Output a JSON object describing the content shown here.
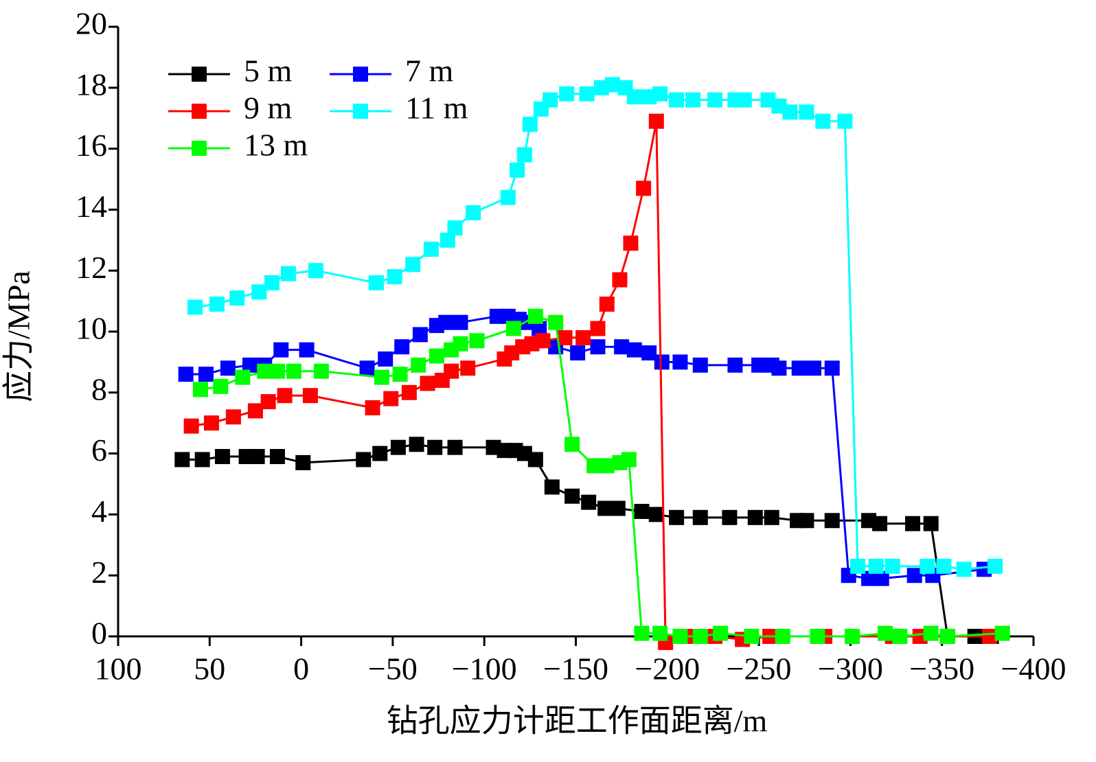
{
  "chart_data": {
    "type": "line",
    "xlabel": "钻孔应力计距工作面距离/m",
    "ylabel": "应力/MPa",
    "xlim": [
      100,
      -400
    ],
    "ylim": [
      0,
      20
    ],
    "xticks": [
      100,
      50,
      0,
      {
        "value": -50,
        "label": "−50"
      },
      {
        "value": -100,
        "label": "−100"
      },
      {
        "value": -150,
        "label": "−150"
      },
      {
        "value": -200,
        "label": "−200"
      },
      {
        "value": -250,
        "label": "−250"
      },
      {
        "value": -300,
        "label": "−300"
      },
      {
        "value": -350,
        "label": "−350"
      },
      {
        "value": -400,
        "label": "−400"
      }
    ],
    "yticks": [
      0,
      2,
      4,
      6,
      8,
      10,
      12,
      14,
      16,
      18,
      20
    ],
    "series": [
      {
        "name": "5 m",
        "color": "#000000",
        "x": [
          65,
          54,
          43,
          30,
          24,
          13,
          -1,
          -34,
          -43,
          -53,
          -63,
          -73,
          -84,
          -105,
          -111,
          -117,
          -122,
          -128,
          -137,
          -148,
          -157,
          -166,
          -173,
          -186,
          -194,
          -205,
          -218,
          -234,
          -248,
          -257,
          -271,
          -276,
          -290,
          -310,
          -316,
          -334,
          -344,
          -353,
          -368,
          -377
        ],
        "values": [
          5.8,
          5.8,
          5.9,
          5.9,
          5.9,
          5.9,
          5.7,
          5.8,
          6.0,
          6.2,
          6.3,
          6.2,
          6.2,
          6.2,
          6.1,
          6.1,
          6.0,
          5.8,
          4.9,
          4.6,
          4.4,
          4.2,
          4.2,
          4.1,
          4.0,
          3.9,
          3.9,
          3.9,
          3.9,
          3.9,
          3.8,
          3.8,
          3.8,
          3.8,
          3.7,
          3.7,
          3.7,
          0.0,
          0.0,
          0.0
        ]
      },
      {
        "name": "7 m",
        "color": "#0000ff",
        "x": [
          63,
          52,
          40,
          28,
          20,
          11,
          -3,
          -36,
          -46,
          -55,
          -65,
          -74,
          -79,
          -87,
          -107,
          -113,
          -119,
          -124,
          -130,
          -139,
          -151,
          -162,
          -175,
          -182,
          -190,
          -197,
          -207,
          -218,
          -237,
          -250,
          -257,
          -261,
          -272,
          -280,
          -290,
          -299,
          -310,
          -317,
          -335,
          -345,
          -373
        ],
        "values": [
          8.6,
          8.6,
          8.8,
          8.9,
          8.9,
          9.4,
          9.4,
          8.8,
          9.1,
          9.5,
          9.9,
          10.2,
          10.3,
          10.3,
          10.5,
          10.5,
          10.4,
          10.3,
          10.1,
          9.5,
          9.3,
          9.5,
          9.5,
          9.4,
          9.3,
          9.0,
          9.0,
          8.9,
          8.9,
          8.9,
          8.9,
          8.8,
          8.8,
          8.8,
          8.8,
          2.0,
          1.9,
          1.9,
          2.0,
          2.0,
          2.2
        ]
      },
      {
        "name": "9 m",
        "color": "#ff0000",
        "x": [
          60,
          49,
          37,
          25,
          18,
          9,
          -5,
          -39,
          -49,
          -59,
          -69,
          -77,
          -82,
          -91,
          -111,
          -115,
          -121,
          -126,
          -132,
          -144,
          -154,
          -162,
          -167,
          -174,
          -180,
          -187,
          -194,
          -199,
          -211,
          -226,
          -241,
          -256,
          -286,
          -323,
          -338,
          -376
        ],
        "values": [
          6.9,
          7.0,
          7.2,
          7.4,
          7.7,
          7.9,
          7.9,
          7.5,
          7.8,
          8.0,
          8.3,
          8.4,
          8.7,
          8.8,
          9.1,
          9.3,
          9.5,
          9.6,
          9.7,
          9.8,
          9.8,
          10.1,
          10.9,
          11.7,
          12.9,
          14.7,
          16.9,
          -0.2,
          0.0,
          0.0,
          -0.1,
          0.0,
          0.0,
          0.0,
          0.0,
          0.0
        ]
      },
      {
        "name": "11 m",
        "color": "#00ffff",
        "x": [
          58,
          46,
          35,
          23,
          16,
          7,
          -8,
          -41,
          -51,
          -61,
          -71,
          -80,
          -84,
          -94,
          -113,
          -118,
          -122,
          -125,
          -131,
          -136,
          -145,
          -156,
          -164,
          -170,
          -177,
          -182,
          -190,
          -196,
          -205,
          -214,
          -226,
          -237,
          -242,
          -255,
          -261,
          -267,
          -276,
          -285,
          -297,
          -304,
          -314,
          -323,
          -342,
          -351,
          -362,
          -379
        ],
        "values": [
          10.8,
          10.9,
          11.1,
          11.3,
          11.6,
          11.9,
          12.0,
          11.6,
          11.8,
          12.2,
          12.7,
          13.0,
          13.4,
          13.9,
          14.4,
          15.3,
          15.8,
          16.8,
          17.3,
          17.6,
          17.8,
          17.8,
          18.0,
          18.1,
          18.0,
          17.7,
          17.7,
          17.8,
          17.6,
          17.6,
          17.6,
          17.6,
          17.6,
          17.6,
          17.4,
          17.2,
          17.2,
          16.9,
          16.9,
          2.3,
          2.3,
          2.3,
          2.3,
          2.3,
          2.2,
          2.3
        ]
      },
      {
        "name": "13 m",
        "color": "#00ff00",
        "x": [
          55,
          44,
          32,
          20,
          13,
          4,
          -11,
          -44,
          -54,
          -64,
          -74,
          -82,
          -87,
          -96,
          -116,
          -128,
          -139,
          -148,
          -160,
          -167,
          -174,
          -179,
          -186,
          -196,
          -207,
          -218,
          -229,
          -246,
          -263,
          -282,
          -301,
          -319,
          -327,
          -344,
          -353,
          -383
        ],
        "values": [
          8.1,
          8.2,
          8.5,
          8.7,
          8.7,
          8.7,
          8.7,
          8.5,
          8.6,
          8.9,
          9.2,
          9.4,
          9.6,
          9.7,
          10.1,
          10.5,
          10.3,
          6.3,
          5.6,
          5.6,
          5.7,
          5.8,
          0.1,
          0.1,
          0.0,
          0.0,
          0.1,
          0.0,
          0.0,
          0.0,
          0.0,
          0.1,
          0.0,
          0.1,
          0.0,
          0.1
        ]
      }
    ]
  }
}
